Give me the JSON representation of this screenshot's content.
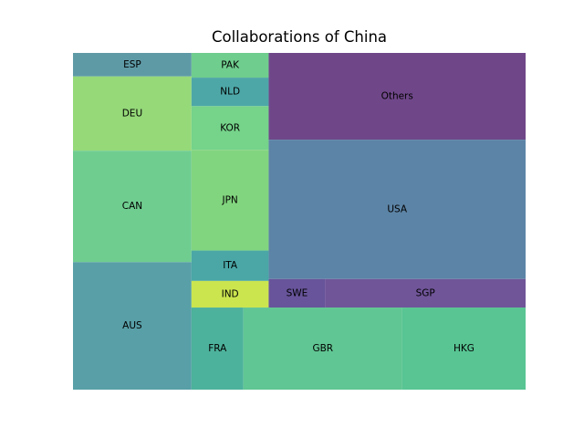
{
  "chart_data": {
    "type": "treemap",
    "title": "Collaborations of China",
    "categories": [
      "ESP",
      "DEU",
      "CAN",
      "AUS",
      "PAK",
      "NLD",
      "KOR",
      "JPN",
      "ITA",
      "IND",
      "FRA",
      "Others",
      "USA",
      "SWE",
      "SGP",
      "GBR",
      "HKG"
    ],
    "values": [
      19,
      60,
      90,
      103,
      13,
      15,
      23,
      53,
      16,
      14,
      29,
      152,
      244,
      11,
      39,
      89,
      69
    ],
    "colors": [
      "#5e9aa6",
      "#95d979",
      "#6fcd90",
      "#589fa7",
      "#6fcd8d",
      "#4ea7a7",
      "#75d38a",
      "#82d57f",
      "#4aa7a6",
      "#cbe54f",
      "#4db29b",
      "#6f4789",
      "#5c84a6",
      "#67549a",
      "#705599",
      "#60c693",
      "#58c593"
    ],
    "grid": false,
    "legend": "none"
  }
}
